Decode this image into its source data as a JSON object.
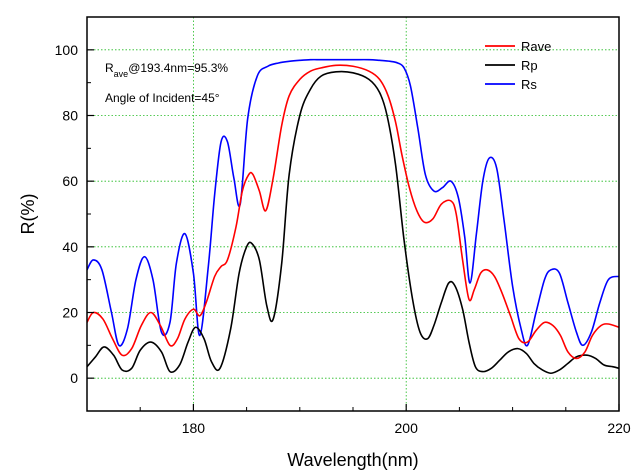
{
  "chart_data": {
    "type": "line",
    "xlabel": "Wavelength(nm)",
    "ylabel": "R(%)",
    "xlim": [
      170,
      220
    ],
    "ylim": [
      -10,
      110
    ],
    "x_ticks": [
      180,
      200,
      220
    ],
    "y_ticks": [
      0,
      20,
      40,
      60,
      80,
      100
    ],
    "grid": true,
    "legend_position": "top-right",
    "annotation": {
      "r_main": "R",
      "r_sub": "ave",
      "r_rest": "@193.4nm=95.3%",
      "angle": "Angle of Incident=45°"
    },
    "series": [
      {
        "name": "Rave",
        "color": "#ff0000",
        "x": [
          170,
          170.6,
          171.5,
          172.4,
          173.3,
          174.2,
          175.1,
          176,
          176.9,
          177.8,
          178.5,
          179.2,
          180,
          180.6,
          181.2,
          182,
          182.6,
          183.2,
          184,
          184.6,
          185.2,
          185.6,
          186.2,
          186.8,
          187.5,
          188.3,
          189,
          190,
          191,
          192,
          193.4,
          195,
          196.5,
          197.5,
          198.3,
          199,
          199.6,
          200.3,
          201,
          201.7,
          202.5,
          203.3,
          204.2,
          204.7,
          205.3,
          205.9,
          206.4,
          207,
          207.6,
          208.3,
          209,
          209.8,
          210.6,
          211.4,
          212.2,
          213,
          213.8,
          214.5,
          215.2,
          216,
          216.8,
          217.5,
          218.3,
          219,
          220
        ],
        "values": [
          17,
          20,
          18,
          12,
          7,
          9,
          16,
          20,
          16,
          10,
          12,
          18,
          21,
          19,
          23,
          31,
          34,
          36,
          46,
          57,
          62,
          62,
          57,
          51,
          61,
          77,
          86,
          91,
          93.5,
          94.5,
          95.3,
          95,
          93.5,
          91,
          86,
          78,
          68,
          58,
          51,
          47.5,
          48.5,
          53,
          54,
          50,
          36,
          24,
          27,
          32,
          33,
          31,
          26,
          19,
          12,
          11,
          14.5,
          17,
          16,
          13,
          8,
          6,
          8,
          13,
          16,
          16.5,
          15.5
        ]
      },
      {
        "name": "Rp",
        "color": "#000000",
        "x": [
          170,
          170.8,
          171.6,
          172.5,
          173.3,
          174.2,
          175,
          176,
          177,
          177.8,
          178.7,
          179.5,
          180.2,
          181,
          181.7,
          182.5,
          183.5,
          184.3,
          185,
          185.5,
          186.2,
          186.9,
          187.5,
          188.3,
          189,
          190,
          191,
          192,
          193.4,
          195,
          196.5,
          197.5,
          198.2,
          199,
          199.8,
          200.6,
          201.3,
          202,
          202.6,
          203.3,
          204,
          204.6,
          205.3,
          205.9,
          206.5,
          207.2,
          208,
          208.8,
          209.6,
          210.5,
          211.3,
          212,
          212.8,
          213.6,
          214.4,
          215.2,
          216,
          217,
          217.8,
          218.6,
          219.4,
          220
        ],
        "values": [
          3.5,
          6.5,
          9.5,
          7,
          2.5,
          3,
          8.5,
          11,
          8,
          2,
          4,
          11,
          15.5,
          12,
          5,
          3,
          15,
          32,
          40,
          41,
          36,
          22,
          18,
          35,
          62,
          80,
          88,
          92,
          93.3,
          93,
          91,
          87,
          80,
          65,
          42,
          24,
          14,
          12,
          16,
          23,
          29,
          28,
          21,
          11,
          3.5,
          2,
          3,
          5.5,
          8,
          9,
          7.5,
          4.5,
          2.5,
          1.5,
          2.5,
          4.5,
          6.5,
          7,
          6,
          4,
          3.5,
          3
        ]
      },
      {
        "name": "Rs",
        "color": "#0000ff",
        "x": [
          170,
          170.6,
          171.4,
          172.3,
          173,
          173.8,
          174.6,
          175.4,
          176.2,
          177,
          177.8,
          178.4,
          179.2,
          180,
          180.6,
          181.4,
          182,
          182.6,
          183.2,
          183.8,
          184.4,
          185.1,
          186,
          187,
          188,
          189,
          190,
          191,
          192,
          193.4,
          195,
          196.5,
          197.5,
          198.5,
          199.2,
          199.8,
          200.4,
          201.1,
          201.8,
          202.6,
          203.4,
          204.2,
          204.9,
          205.5,
          206,
          206.6,
          207.2,
          207.8,
          208.5,
          209.2,
          210,
          210.8,
          211.4,
          212.2,
          213,
          213.6,
          214.4,
          215.2,
          216,
          216.6,
          217.4,
          218.2,
          219,
          220
        ],
        "values": [
          33,
          36,
          33,
          20,
          10,
          15,
          30,
          37,
          30,
          14,
          17,
          35,
          44,
          32,
          13,
          34,
          56,
          72,
          72,
          61,
          53,
          79,
          92,
          95,
          96,
          96.5,
          96.8,
          97,
          97,
          97,
          97,
          97,
          96.8,
          96.5,
          96,
          94.5,
          89,
          76,
          62,
          57,
          58,
          60,
          55,
          43,
          29,
          44,
          60,
          67,
          64,
          48,
          28,
          15,
          10,
          20,
          30,
          33,
          32,
          23,
          14,
          10,
          14,
          23,
          30,
          31
        ]
      }
    ]
  }
}
